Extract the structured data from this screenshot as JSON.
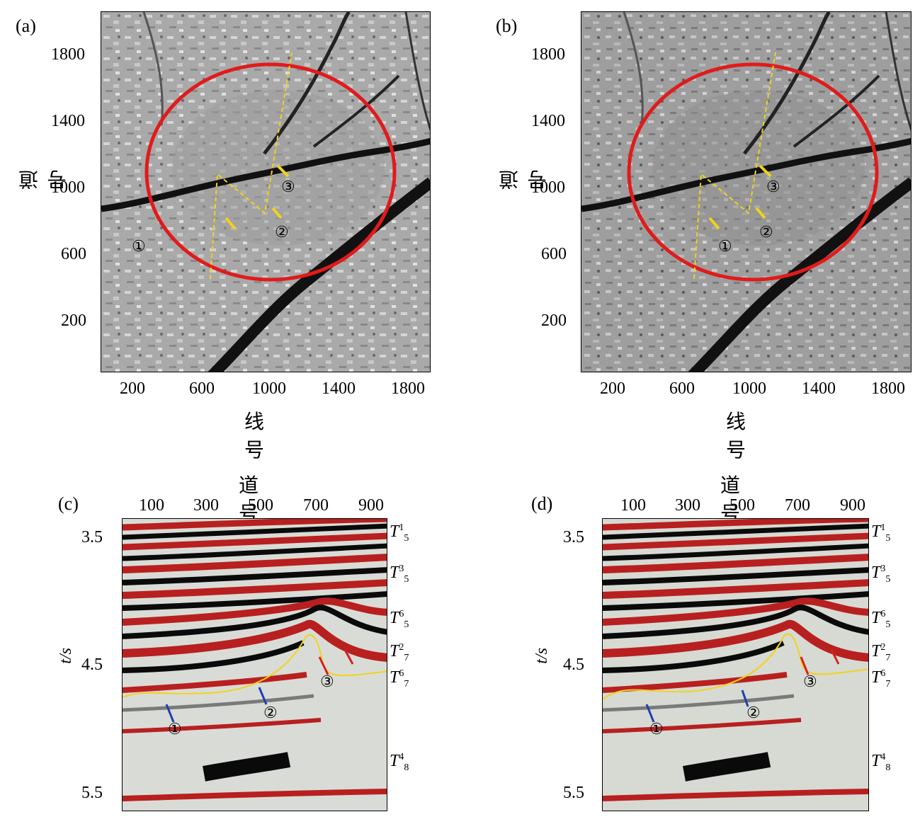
{
  "panels": {
    "a": {
      "label": "(a)"
    },
    "b": {
      "label": "(b)"
    },
    "c": {
      "label": "(c)"
    },
    "d": {
      "label": "(d)"
    }
  },
  "map_axes": {
    "xlabel": "线号",
    "ylabel": "道号",
    "x_ticks": [
      "200",
      "600",
      "1000",
      "1400",
      "1800"
    ],
    "y_ticks": [
      "1800",
      "1400",
      "1000",
      "600",
      "200"
    ]
  },
  "section_axes": {
    "xlabel": "道号",
    "ylabel": "t/s",
    "x_ticks": [
      "100",
      "300",
      "500",
      "700",
      "900"
    ],
    "y_ticks": [
      "3.5",
      "4.5",
      "5.5"
    ]
  },
  "markers": [
    "①",
    "②",
    "③"
  ],
  "horizons": [
    {
      "base": "T",
      "sup": "1",
      "sub": "5"
    },
    {
      "base": "T",
      "sup": "3",
      "sub": "5"
    },
    {
      "base": "T",
      "sup": "6",
      "sub": "5"
    },
    {
      "base": "T",
      "sup": "2",
      "sub": "7"
    },
    {
      "base": "T",
      "sup": "6",
      "sub": "7"
    },
    {
      "base": "T",
      "sup": "4",
      "sub": "8"
    }
  ],
  "colors": {
    "ellipse": "#e11b1b",
    "fault_line": "#f2d21b",
    "arrow_yellow": "#f2d21b",
    "arrow_blue": "#1f3fb0",
    "arrow_red": "#d81f1f",
    "seismic_red": "#b82020",
    "seismic_black": "#0a0a0a"
  }
}
